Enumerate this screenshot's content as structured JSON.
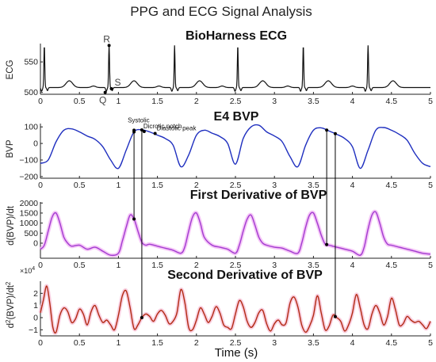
{
  "figure": {
    "title": "PPG and ECG Signal Analysis",
    "xlabel": "Time (s)"
  },
  "colors": {
    "ecg": "#111111",
    "bvp": "#1f2fbf",
    "first_derivative": "#a23ad0",
    "first_derivative_glow": "#f2b8f5",
    "second_derivative": "#b22a12",
    "second_derivative_glow": "#f7c3d8",
    "axis": "#222222"
  },
  "chart_data": [
    {
      "type": "line",
      "title": "BioHarness ECG",
      "ylabel": "ECG",
      "xlim": [
        0,
        5
      ],
      "ylim": [
        497,
        580
      ],
      "xticks": [
        0,
        0.5,
        1,
        1.5,
        2,
        2.5,
        3,
        3.5,
        4,
        4.5,
        5
      ],
      "xtick_labels": [
        "0",
        "0.5",
        "1",
        "1.5",
        "2",
        "2.5",
        "3",
        "3.5",
        "4",
        "4.5",
        "5"
      ],
      "yticks": [
        500,
        550
      ],
      "ytick_labels": [
        "500",
        "550"
      ],
      "baseline": 508,
      "r_peaks": [
        0.05,
        0.88,
        1.72,
        2.53,
        3.37,
        4.2
      ],
      "r_peak_value": 577,
      "annotations": [
        {
          "label": "R",
          "x": 0.88,
          "y": 577
        },
        {
          "label": "Q",
          "x": 0.83,
          "y": 500
        },
        {
          "label": "S",
          "x": 0.91,
          "y": 506
        }
      ]
    },
    {
      "type": "line",
      "title": "E4 BVP",
      "ylabel": "BVP",
      "xlim": [
        0,
        5
      ],
      "ylim": [
        -210,
        120
      ],
      "xticks": [
        0,
        0.5,
        1,
        1.5,
        2,
        2.5,
        3,
        3.5,
        4,
        4.5,
        5
      ],
      "xtick_labels": [
        "0",
        "0.5",
        "1",
        "1.5",
        "2",
        "2.5",
        "3",
        "3.5",
        "4",
        "4.5",
        "5"
      ],
      "yticks": [
        -200,
        -100,
        0,
        100
      ],
      "ytick_labels": [
        "−200",
        "−100",
        "0",
        "100"
      ],
      "x": [
        0,
        0.1,
        0.2,
        0.3,
        0.4,
        0.5,
        0.6,
        0.7,
        0.8,
        0.9,
        1.0,
        1.1,
        1.2,
        1.3,
        1.4,
        1.5,
        1.6,
        1.7,
        1.8,
        1.9,
        2.0,
        2.1,
        2.2,
        2.3,
        2.4,
        2.5,
        2.6,
        2.7,
        2.8,
        2.9,
        3.0,
        3.1,
        3.2,
        3.3,
        3.4,
        3.5,
        3.6,
        3.7,
        3.8,
        3.9,
        4.0,
        4.1,
        4.2,
        4.3,
        4.4,
        4.5,
        4.6,
        4.7,
        4.8,
        4.9,
        5.0
      ],
      "y": [
        -120,
        -100,
        10,
        80,
        88,
        70,
        45,
        25,
        -20,
        -100,
        -150,
        -40,
        70,
        82,
        70,
        50,
        30,
        -10,
        -140,
        -70,
        50,
        80,
        62,
        42,
        0,
        -125,
        30,
        100,
        110,
        70,
        45,
        10,
        -80,
        -140,
        -10,
        80,
        94,
        75,
        55,
        30,
        -20,
        -150,
        -40,
        80,
        96,
        80,
        55,
        20,
        -60,
        -120,
        -140
      ],
      "annotations": [
        {
          "label": "Systolic",
          "x": 1.2,
          "y": 80
        },
        {
          "label": "Dicrotic notch",
          "x": 1.33,
          "y": 72
        },
        {
          "label": "Diastolic peak",
          "x": 1.47,
          "y": 60
        }
      ]
    },
    {
      "type": "line",
      "title": "First Derivative of BVP",
      "ylabel": "d(BVP)/dt",
      "xlim": [
        0,
        5
      ],
      "ylim": [
        -750,
        2050
      ],
      "xticks": [
        0,
        0.5,
        1,
        1.5,
        2,
        2.5,
        3,
        3.5,
        4,
        4.5,
        5
      ],
      "xtick_labels": [
        "0",
        "0.5",
        "1",
        "1.5",
        "2",
        "2.5",
        "3",
        "3.5",
        "4",
        "4.5",
        "5"
      ],
      "yticks": [
        0,
        500,
        1000,
        1500,
        2000
      ],
      "ytick_labels": [
        "0",
        "500",
        "1000",
        "1500",
        "2000"
      ],
      "x": [
        0,
        0.05,
        0.1,
        0.15,
        0.2,
        0.25,
        0.3,
        0.35,
        0.4,
        0.5,
        0.6,
        0.7,
        0.8,
        0.9,
        1.0,
        1.05,
        1.1,
        1.15,
        1.2,
        1.25,
        1.3,
        1.35,
        1.4,
        1.5,
        1.6,
        1.7,
        1.8,
        1.85,
        1.9,
        1.95,
        2.0,
        2.05,
        2.1,
        2.2,
        2.3,
        2.4,
        2.5,
        2.55,
        2.6,
        2.65,
        2.7,
        2.75,
        2.8,
        2.85,
        2.9,
        3.0,
        3.1,
        3.2,
        3.3,
        3.35,
        3.4,
        3.45,
        3.5,
        3.55,
        3.6,
        3.65,
        3.7,
        3.8,
        3.9,
        4.0,
        4.1,
        4.15,
        4.2,
        4.25,
        4.3,
        4.35,
        4.4,
        4.45,
        4.5,
        4.6,
        4.7,
        4.8,
        4.9,
        5.0
      ],
      "y": [
        -300,
        -100,
        600,
        1300,
        1500,
        1000,
        300,
        0,
        -150,
        -100,
        -300,
        -200,
        -400,
        -600,
        -500,
        100,
        800,
        1400,
        1200,
        600,
        50,
        -100,
        -50,
        -150,
        -250,
        -350,
        -500,
        -200,
        600,
        1300,
        1500,
        1000,
        300,
        -100,
        -200,
        -300,
        -500,
        -100,
        600,
        1200,
        1400,
        900,
        300,
        0,
        -100,
        -200,
        -250,
        -400,
        -500,
        0,
        800,
        1400,
        1500,
        1000,
        400,
        -50,
        -100,
        -200,
        -300,
        -400,
        -600,
        -200,
        700,
        1400,
        1550,
        1000,
        300,
        -50,
        -100,
        -200,
        -300,
        -400,
        -500,
        -550
      ]
    },
    {
      "type": "line",
      "title": "Second Derivative of BVP",
      "ylabel": "d²(BVP)/dt²",
      "yscale_factor_label": "×10",
      "yscale_exponent": "4",
      "xlim": [
        0,
        5
      ],
      "ylim": [
        -1.5,
        3.0
      ],
      "xticks": [
        0,
        0.5,
        1,
        1.5,
        2,
        2.5,
        3,
        3.5,
        4,
        4.5,
        5
      ],
      "xtick_labels": [
        "0",
        "0.5",
        "1",
        "1.5",
        "2",
        "2.5",
        "3",
        "3.5",
        "4",
        "4.5",
        "5"
      ],
      "yticks": [
        -1,
        0,
        1,
        2
      ],
      "ytick_labels": [
        "−1",
        "0",
        "1",
        "2"
      ],
      "x": [
        0,
        0.04,
        0.08,
        0.12,
        0.16,
        0.2,
        0.25,
        0.3,
        0.35,
        0.4,
        0.45,
        0.5,
        0.55,
        0.6,
        0.65,
        0.7,
        0.75,
        0.8,
        0.85,
        0.9,
        0.95,
        1.0,
        1.05,
        1.1,
        1.15,
        1.2,
        1.25,
        1.3,
        1.35,
        1.4,
        1.45,
        1.5,
        1.55,
        1.6,
        1.65,
        1.7,
        1.75,
        1.8,
        1.85,
        1.9,
        1.95,
        2.0,
        2.05,
        2.1,
        2.15,
        2.2,
        2.25,
        2.3,
        2.35,
        2.4,
        2.45,
        2.5,
        2.55,
        2.6,
        2.65,
        2.7,
        2.75,
        2.8,
        2.85,
        2.9,
        2.95,
        3.0,
        3.05,
        3.1,
        3.15,
        3.2,
        3.25,
        3.3,
        3.35,
        3.4,
        3.45,
        3.5,
        3.55,
        3.6,
        3.65,
        3.7,
        3.75,
        3.8,
        3.85,
        3.9,
        3.95,
        4.0,
        4.05,
        4.1,
        4.15,
        4.2,
        4.25,
        4.3,
        4.35,
        4.4,
        4.45,
        4.5,
        4.55,
        4.6,
        4.65,
        4.7,
        4.75,
        4.8,
        4.85,
        4.9,
        4.95,
        5.0
      ],
      "y": [
        0.4,
        1.5,
        2.6,
        1.2,
        -0.8,
        -1.2,
        0.2,
        0.8,
        0.5,
        -0.4,
        -0.1,
        0.7,
        0.3,
        -0.6,
        0.5,
        1.0,
        0.2,
        -0.4,
        -0.2,
        -0.6,
        -1.0,
        0.2,
        1.8,
        2.2,
        0.8,
        -0.9,
        -0.6,
        0.0,
        0.3,
        0.1,
        -0.3,
        0.3,
        0.6,
        0.2,
        -0.5,
        -0.3,
        0.4,
        2.3,
        1.3,
        -0.8,
        -1.0,
        -0.2,
        0.8,
        0.3,
        -0.4,
        0.1,
        0.9,
        0.4,
        -0.6,
        -0.8,
        -0.9,
        0.3,
        1.4,
        0.9,
        -0.3,
        -0.8,
        -0.4,
        0.4,
        0.6,
        -0.5,
        -1.1,
        -0.5,
        -0.2,
        -0.6,
        -0.4,
        1.2,
        1.7,
        0.9,
        -0.6,
        -1.2,
        -0.7,
        0.2,
        1.8,
        0.4,
        -1.0,
        -0.7,
        0.2,
        0.0,
        -0.3,
        -1.1,
        -0.6,
        0.4,
        1.9,
        0.8,
        -0.6,
        -0.9,
        0.3,
        1.0,
        0.4,
        -0.6,
        0.1,
        1.6,
        0.7,
        -0.6,
        -0.5,
        0.1,
        -0.2,
        -0.4,
        -0.3,
        -0.6,
        -0.9,
        -0.3
      ]
    }
  ],
  "markers": {
    "times": [
      1.2,
      1.3,
      3.67,
      3.78
    ]
  }
}
